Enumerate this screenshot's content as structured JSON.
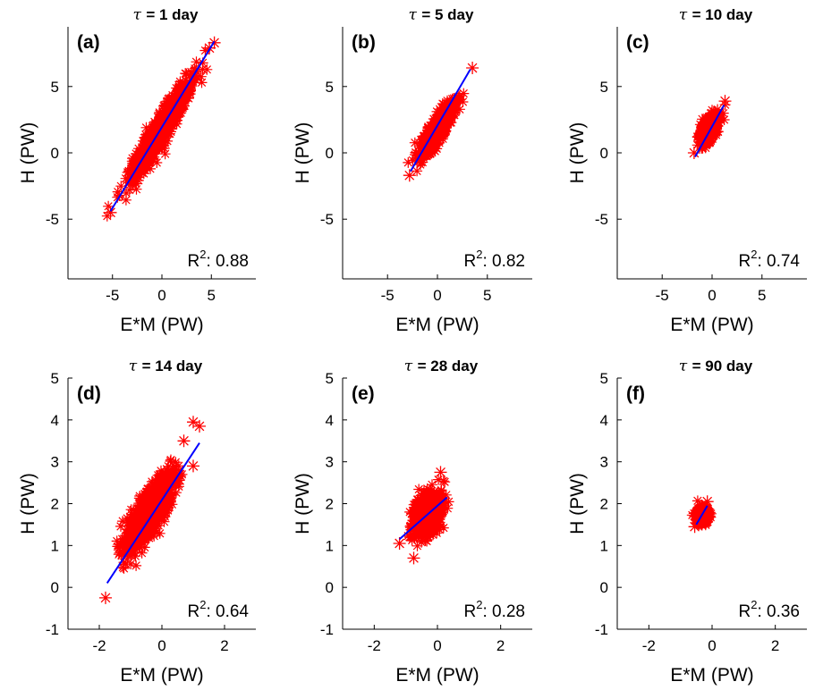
{
  "figure": {
    "tau_symbol": "τ",
    "colors": {
      "points": "#ff0000",
      "fit": "#0000ff",
      "axes": "#000000"
    }
  },
  "chart_data": [
    {
      "type": "scatter",
      "letter": "(a)",
      "title": "= 1 day",
      "xlabel": "E*M (PW)",
      "ylabel": "H (PW)",
      "xlim": [
        -9.5,
        9.5
      ],
      "ylim": [
        -9.5,
        9.5
      ],
      "xticks": [
        -5,
        0,
        5
      ],
      "yticks": [
        -5,
        0,
        5
      ],
      "tick_labels_x": [
        "-5",
        "0",
        "5"
      ],
      "tick_labels_y": [
        "-5",
        "0",
        "5"
      ],
      "r2_text": "R",
      "r2_sup": "2",
      "r2_value": ": 0.88",
      "cloud": {
        "cx": 0.0,
        "cy": 1.9,
        "half_length": 5.3,
        "half_width": 0.75,
        "slope": 1.22
      },
      "fit": [
        [
          -5.2,
          -4.4
        ],
        [
          5.3,
          8.4
        ]
      ],
      "extremes": [
        [
          -5.2,
          -4.5
        ],
        [
          5.3,
          8.3
        ],
        [
          4.8,
          7.9
        ]
      ]
    },
    {
      "type": "scatter",
      "letter": "(b)",
      "title": "= 5 day",
      "xlabel": "E*M (PW)",
      "ylabel": "H (PW)",
      "xlim": [
        -9.5,
        9.5
      ],
      "ylim": [
        -9.5,
        9.5
      ],
      "xticks": [
        -5,
        0,
        5
      ],
      "yticks": [
        -5,
        0,
        5
      ],
      "tick_labels_x": [
        "-5",
        "0",
        "5"
      ],
      "tick_labels_y": [
        "-5",
        "0",
        "5"
      ],
      "r2_text": "R",
      "r2_sup": "2",
      "r2_value": ": 0.82",
      "cloud": {
        "cx": 0.0,
        "cy": 1.8,
        "half_length": 2.6,
        "half_width": 0.6,
        "slope": 1.2
      },
      "fit": [
        [
          -2.7,
          -1.4
        ],
        [
          3.3,
          6.3
        ]
      ],
      "extremes": [
        [
          -2.8,
          -1.7
        ],
        [
          3.5,
          6.4
        ]
      ]
    },
    {
      "type": "scatter",
      "letter": "(c)",
      "title": "= 10 day",
      "xlabel": "E*M (PW)",
      "ylabel": "H (PW)",
      "xlim": [
        -9.5,
        9.5
      ],
      "ylim": [
        -9.5,
        9.5
      ],
      "xticks": [
        -5,
        0,
        5
      ],
      "yticks": [
        -5,
        0,
        5
      ],
      "tick_labels_x": [
        "-5",
        "0",
        "5"
      ],
      "tick_labels_y": [
        "-5",
        "0",
        "5"
      ],
      "r2_text": "R",
      "r2_sup": "2",
      "r2_value": ": 0.74",
      "cloud": {
        "cx": -0.3,
        "cy": 1.8,
        "half_length": 1.3,
        "half_width": 0.55,
        "slope": 1.4
      },
      "fit": [
        [
          -1.7,
          -0.3
        ],
        [
          1.2,
          3.6
        ]
      ],
      "extremes": [
        [
          1.3,
          3.9
        ],
        [
          -1.8,
          0.0
        ]
      ]
    },
    {
      "type": "scatter",
      "letter": "(d)",
      "title": "= 14 day",
      "xlabel": "E*M (PW)",
      "ylabel": "H (PW)",
      "xlim": [
        -3,
        3
      ],
      "ylim": [
        -1,
        5
      ],
      "xticks": [
        -2,
        0,
        2
      ],
      "yticks": [
        -1,
        0,
        1,
        2,
        3,
        4,
        5
      ],
      "tick_labels_x": [
        "-2",
        "0",
        "2"
      ],
      "tick_labels_y": [
        "-1",
        "0",
        "1",
        "2",
        "3",
        "4",
        "5"
      ],
      "r2_text": "R",
      "r2_sup": "2",
      "r2_value": ": 0.64",
      "cloud": {
        "cx": -0.4,
        "cy": 1.8,
        "half_length": 1.3,
        "half_width": 0.35,
        "slope": 1.25
      },
      "fit": [
        [
          -1.75,
          0.1
        ],
        [
          1.2,
          3.45
        ]
      ],
      "extremes": [
        [
          -1.8,
          -0.25
        ],
        [
          1.0,
          3.95
        ],
        [
          1.2,
          3.85
        ],
        [
          0.7,
          3.5
        ],
        [
          1.0,
          2.9
        ]
      ]
    },
    {
      "type": "scatter",
      "letter": "(e)",
      "title": "= 28 day",
      "xlabel": "E*M (PW)",
      "ylabel": "H (PW)",
      "xlim": [
        -3,
        3
      ],
      "ylim": [
        -1,
        5
      ],
      "xticks": [
        -2,
        0,
        2
      ],
      "yticks": [
        -1,
        0,
        1,
        2,
        3,
        4,
        5
      ],
      "tick_labels_x": [
        "-2",
        "0",
        "2"
      ],
      "tick_labels_y": [
        "-1",
        "0",
        "1",
        "2",
        "3",
        "4",
        "5"
      ],
      "r2_text": "R",
      "r2_sup": "2",
      "r2_value": ": 0.28",
      "cloud": {
        "cx": -0.3,
        "cy": 1.75,
        "half_length": 0.6,
        "half_width": 0.35,
        "slope": 1.4
      },
      "fit": [
        [
          -1.2,
          1.15
        ],
        [
          0.3,
          2.15
        ]
      ],
      "extremes": [
        [
          -1.2,
          1.05
        ],
        [
          -0.75,
          0.7
        ],
        [
          0.1,
          2.75
        ]
      ]
    },
    {
      "type": "scatter",
      "letter": "(f)",
      "title": "= 90 day",
      "xlabel": "E*M (PW)",
      "ylabel": "H (PW)",
      "xlim": [
        -3,
        3
      ],
      "ylim": [
        -1,
        5
      ],
      "xticks": [
        -2,
        0,
        2
      ],
      "yticks": [
        -1,
        0,
        1,
        2,
        3,
        4,
        5
      ],
      "tick_labels_x": [
        "-2",
        "0",
        "2"
      ],
      "tick_labels_y": [
        "-1",
        "0",
        "1",
        "2",
        "3",
        "4",
        "5"
      ],
      "r2_text": "R",
      "r2_sup": "2",
      "r2_value": ": 0.36",
      "cloud": {
        "cx": -0.3,
        "cy": 1.72,
        "half_length": 0.2,
        "half_width": 0.16,
        "slope": 1.2
      },
      "fit": [
        [
          -0.5,
          1.5
        ],
        [
          -0.15,
          1.95
        ]
      ],
      "extremes": [
        [
          -0.55,
          1.45
        ],
        [
          -0.15,
          2.05
        ]
      ]
    }
  ]
}
